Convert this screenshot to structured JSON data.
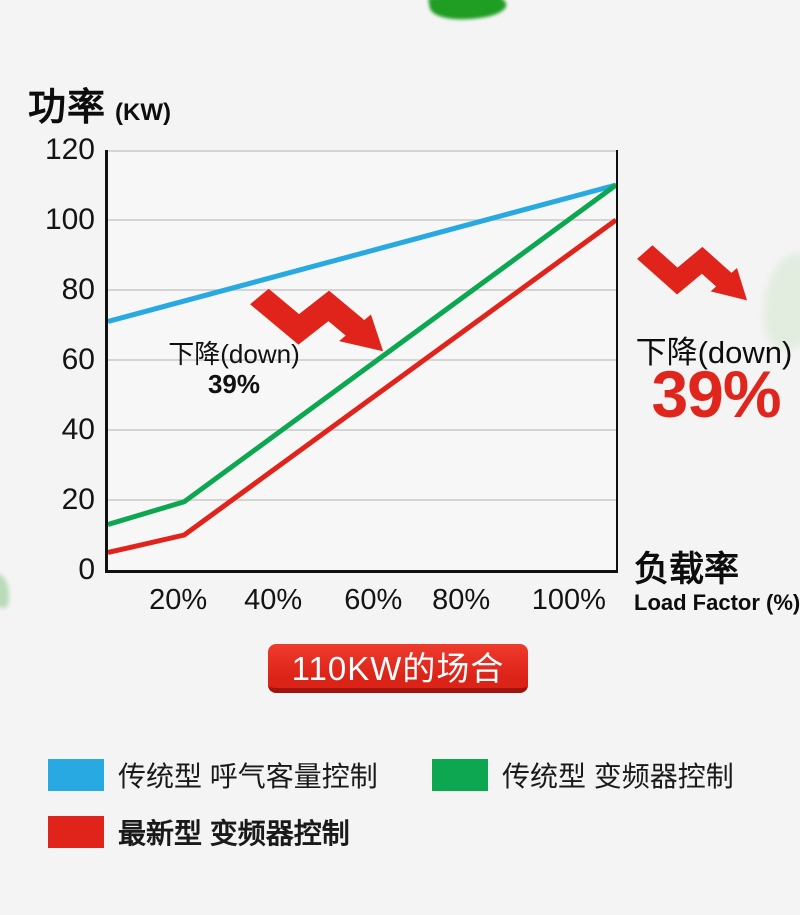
{
  "page": {
    "background": "#f4f4f4"
  },
  "colors": {
    "blue": "#29a9e1",
    "green": "#0ca750",
    "red": "#e0231b",
    "accent_red": "#e0251c",
    "grid": "#c9c9c9",
    "badge_red": "#dc2318",
    "badge_red_dark": "#a3130d",
    "leaf_green": "#1f9e23"
  },
  "title": {
    "main": "功率",
    "unit": "(KW)"
  },
  "chart_data": {
    "type": "line",
    "title": "功率 (KW)",
    "xlabel": "负载率 Load Factor (%)",
    "ylabel": "功率 (KW)",
    "ylim": [
      0,
      120
    ],
    "y_ticks": [
      120,
      100,
      80,
      60,
      40,
      20,
      0
    ],
    "x_ticks": [
      {
        "label": "20%",
        "pos": 14.4
      },
      {
        "label": "40%",
        "pos": 33.1
      },
      {
        "label": "60%",
        "pos": 52.8
      },
      {
        "label": "80%",
        "pos": 70.1
      },
      {
        "label": "100%",
        "pos": 91.3
      }
    ],
    "grid": true,
    "legend_position": "bottom",
    "series": [
      {
        "name": "传统型 呼气客量控制",
        "color_key": "blue",
        "points": [
          [
            0,
            71
          ],
          [
            100,
            110
          ]
        ]
      },
      {
        "name": "传统型 变频器控制",
        "color_key": "green",
        "points": [
          [
            0,
            13
          ],
          [
            15,
            19.5
          ],
          [
            100,
            110
          ]
        ]
      },
      {
        "name": "最新型 变频器控制",
        "color_key": "red",
        "points": [
          [
            0,
            5
          ],
          [
            15,
            10
          ],
          [
            100,
            100
          ]
        ]
      }
    ]
  },
  "annotations": {
    "in_chart": {
      "line1": "下降(down)",
      "line2": "39%"
    },
    "right": {
      "line1": "下降(down)",
      "value": "39%"
    }
  },
  "x_axis_title": {
    "main": "负载率",
    "sub": "Load Factor (%)"
  },
  "badge": {
    "label": "110KW的场合"
  },
  "legend": {
    "items": [
      {
        "label": "传统型 呼气客量控制",
        "color_key": "blue",
        "bold": false
      },
      {
        "label": "传统型 变频器控制",
        "color_key": "green",
        "bold": false
      },
      {
        "label": "最新型 变频器控制",
        "color_key": "red",
        "bold": true
      }
    ]
  }
}
